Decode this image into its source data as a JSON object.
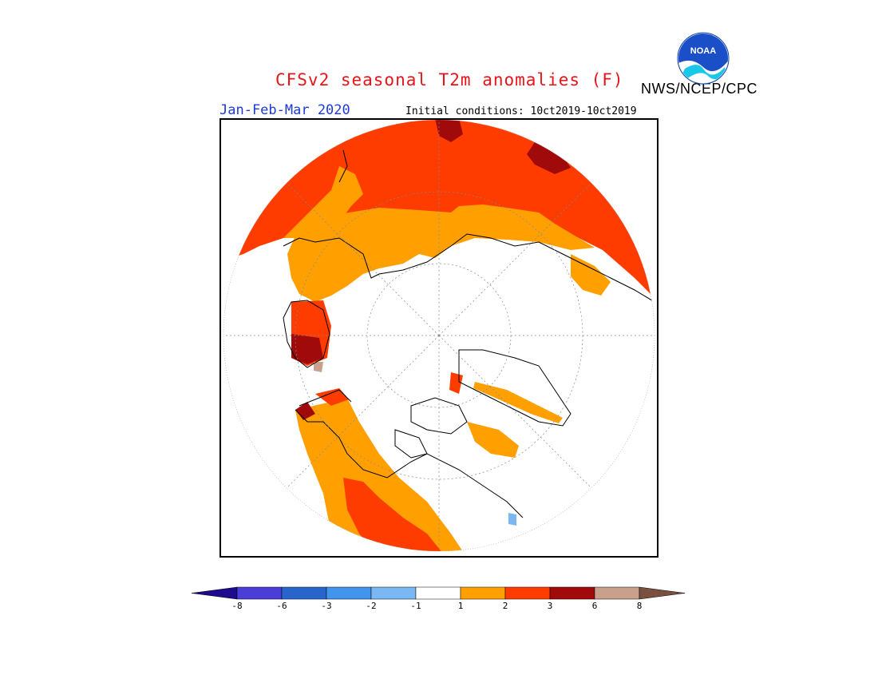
{
  "header": {
    "title": "CFSv2 seasonal T2m anomalies (F)",
    "agency": "NWS/NCEP/CPC",
    "period": "Jan-Feb-Mar 2020",
    "initial_conditions": "Initial conditions: 10ct2019-10ct2019",
    "logo_text": "NOAA"
  },
  "map": {
    "projection": "north-polar-stereographic",
    "units": "F"
  },
  "legend": {
    "tick_labels": [
      "-8",
      "-6",
      "-3",
      "-2",
      "-1",
      "1",
      "2",
      "3",
      "6",
      "8"
    ],
    "colors": [
      "#1e0a8c",
      "#4b3ed6",
      "#2765cc",
      "#4195ee",
      "#79b8f2",
      "#ffffff",
      "#ffa000",
      "#ff3c00",
      "#a00a0a",
      "#c8a08c",
      "#7a5040"
    ]
  },
  "colors": {
    "warm_1_2": "#ffa000",
    "warm_2_3": "#ff3c00",
    "warm_3_6": "#a00a0a",
    "warm_6_8": "#c8a08c",
    "cool_1_2": "#79b8f2",
    "title_red": "#e8141a",
    "period_blue": "#1d3ad6"
  }
}
